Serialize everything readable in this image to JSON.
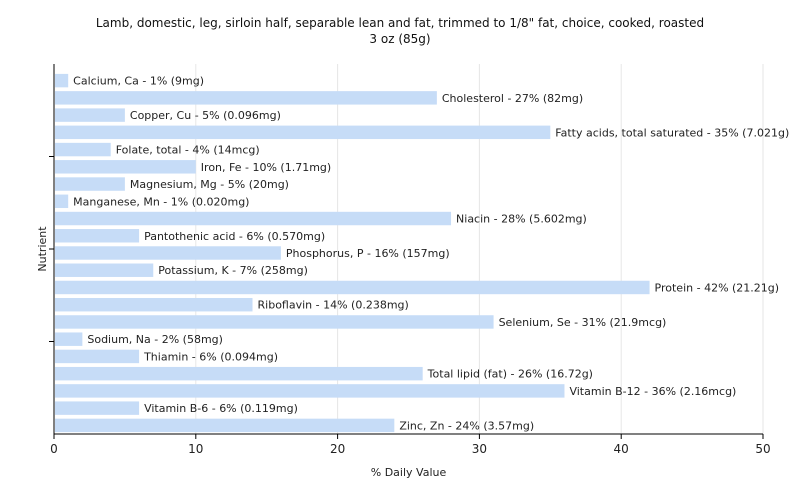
{
  "chart_data": {
    "type": "bar",
    "orientation": "horizontal",
    "title": "Lamb, domestic, leg, sirloin half, separable lean and fat, trimmed to 1/8\" fat, choice, cooked, roasted",
    "subtitle": "3 oz (85g)",
    "xlabel": "% Daily Value",
    "ylabel": "Nutrient",
    "xlim": [
      0,
      50
    ],
    "xticks": [
      0,
      10,
      20,
      30,
      40,
      50
    ],
    "grid": true,
    "bar_color": "#c6dcf7",
    "categories": [
      "Calcium, Ca",
      "Cholesterol",
      "Copper, Cu",
      "Fatty acids, total saturated",
      "Folate, total",
      "Iron, Fe",
      "Magnesium, Mg",
      "Manganese, Mn",
      "Niacin",
      "Pantothenic acid",
      "Phosphorus, P",
      "Potassium, K",
      "Protein",
      "Riboflavin",
      "Selenium, Se",
      "Sodium, Na",
      "Thiamin",
      "Total lipid (fat)",
      "Vitamin B-12",
      "Vitamin B-6",
      "Zinc, Zn"
    ],
    "values": [
      1,
      27,
      5,
      35,
      4,
      10,
      5,
      1,
      28,
      6,
      16,
      7,
      42,
      14,
      31,
      2,
      6,
      26,
      36,
      6,
      24
    ],
    "labels": [
      "Calcium, Ca - 1% (9mg)",
      "Cholesterol - 27% (82mg)",
      "Copper, Cu - 5% (0.096mg)",
      "Fatty acids, total saturated - 35% (7.021g)",
      "Folate, total - 4% (14mcg)",
      "Iron, Fe - 10% (1.71mg)",
      "Magnesium, Mg - 5% (20mg)",
      "Manganese, Mn - 1% (0.020mg)",
      "Niacin - 28% (5.602mg)",
      "Pantothenic acid - 6% (0.570mg)",
      "Phosphorus, P - 16% (157mg)",
      "Potassium, K - 7% (258mg)",
      "Protein - 42% (21.21g)",
      "Riboflavin - 14% (0.238mg)",
      "Selenium, Se - 31% (21.9mcg)",
      "Sodium, Na - 2% (58mg)",
      "Thiamin - 6% (0.094mg)",
      "Total lipid (fat) - 26% (16.72g)",
      "Vitamin B-12 - 36% (2.16mcg)",
      "Vitamin B-6 - 6% (0.119mg)",
      "Zinc, Zn - 24% (3.57mg)"
    ]
  }
}
